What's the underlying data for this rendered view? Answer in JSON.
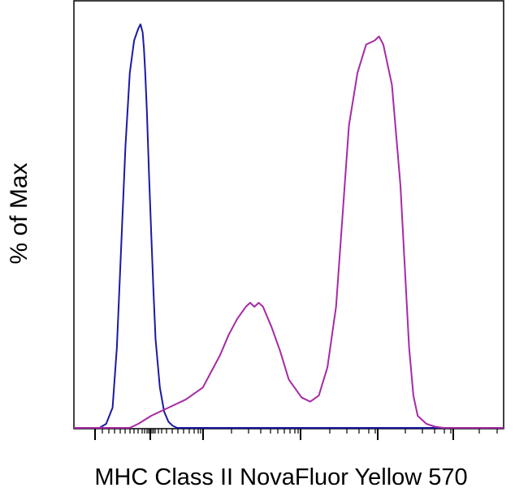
{
  "chart_data": {
    "type": "area",
    "title": "",
    "xlabel": "MHC Class II NovaFluor Yellow 570",
    "ylabel": "% of Max",
    "x_scale": "biexponential, unlabeled decades",
    "xlim": [
      0,
      1
    ],
    "ylim": [
      0,
      100
    ],
    "grid": false,
    "legend": "none",
    "series": [
      {
        "color": "#1a1aa6",
        "x": [
          0.0,
          0.06,
          0.075,
          0.09,
          0.1,
          0.11,
          0.12,
          0.13,
          0.14,
          0.15,
          0.155,
          0.16,
          0.163,
          0.166,
          0.17,
          0.175,
          0.18,
          0.185,
          0.19,
          0.2,
          0.21,
          0.22,
          0.23,
          0.24,
          0.26,
          1.0
        ],
        "y": [
          0,
          0,
          1,
          5,
          20,
          45,
          70,
          88,
          96,
          99,
          100,
          98,
          94,
          88,
          78,
          62,
          48,
          34,
          22,
          10,
          4,
          1.5,
          0.5,
          0,
          0,
          0
        ]
      },
      {
        "color": "#a62aa6",
        "x": [
          0.0,
          0.13,
          0.15,
          0.18,
          0.22,
          0.26,
          0.3,
          0.32,
          0.34,
          0.36,
          0.38,
          0.4,
          0.41,
          0.42,
          0.43,
          0.44,
          0.46,
          0.48,
          0.5,
          0.53,
          0.55,
          0.57,
          0.59,
          0.61,
          0.62,
          0.63,
          0.64,
          0.66,
          0.68,
          0.7,
          0.71,
          0.72,
          0.74,
          0.76,
          0.77,
          0.78,
          0.79,
          0.8,
          0.82,
          0.84,
          0.86,
          0.88,
          0.9,
          1.0
        ],
        "y": [
          0,
          0,
          1,
          3,
          5,
          7,
          10,
          14,
          18,
          23,
          27,
          30,
          31,
          30,
          31,
          30,
          25,
          19,
          12,
          7.5,
          6.5,
          8,
          15,
          30,
          45,
          60,
          75,
          88,
          95,
          96,
          97,
          95,
          85,
          60,
          40,
          20,
          8,
          3,
          1,
          0.3,
          0,
          0,
          0,
          0
        ]
      }
    ]
  }
}
